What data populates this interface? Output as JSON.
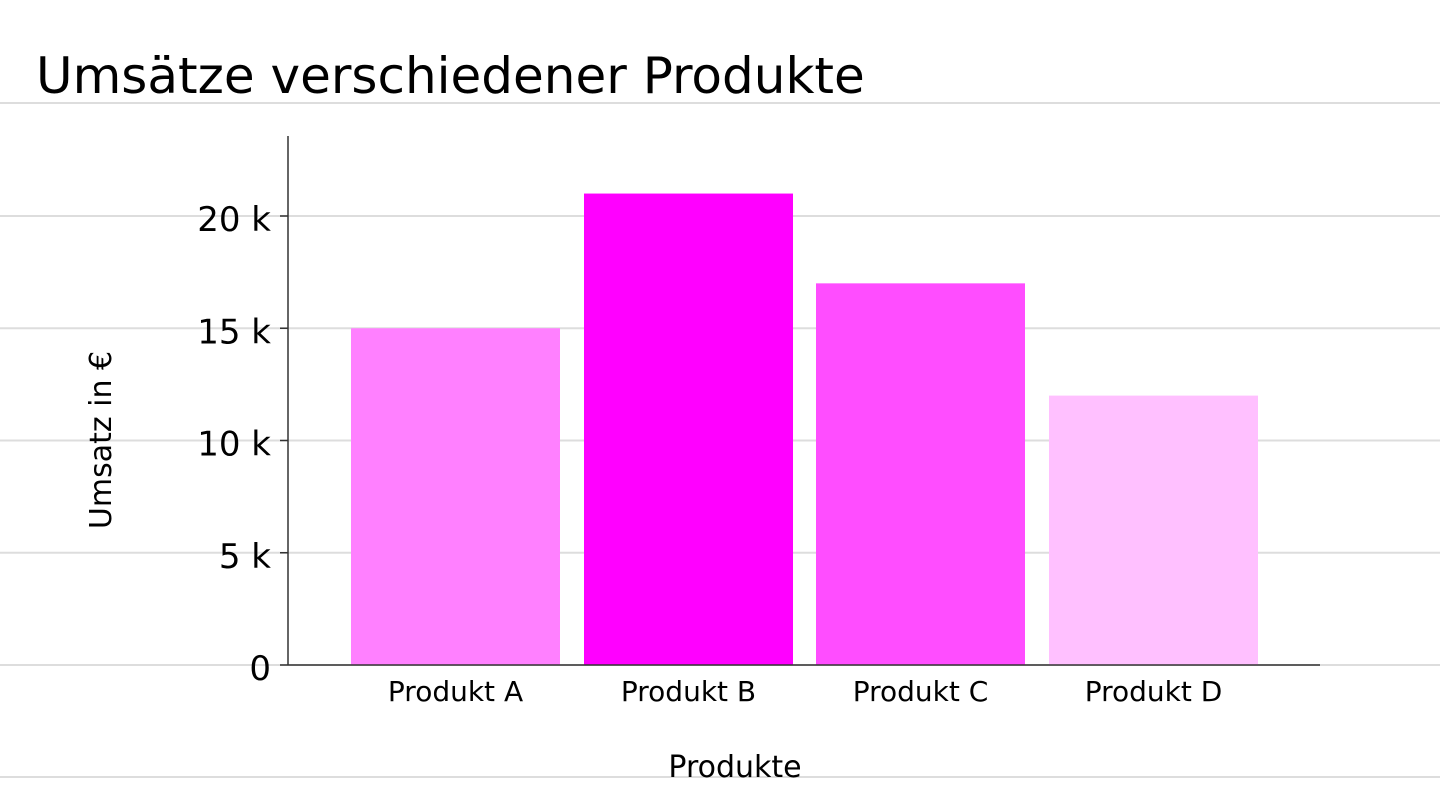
{
  "chart_data": {
    "type": "bar",
    "title": "Umsätze verschiedener Produkte",
    "xlabel": "Produkte",
    "ylabel": "Umsatz in €",
    "categories": [
      "Produkt A",
      "Produkt B",
      "Produkt C",
      "Produkt D"
    ],
    "values": [
      15000,
      21000,
      17000,
      12000
    ],
    "colors": [
      "#ff80ff",
      "#ff00ff",
      "#ff4dff",
      "#ffc0ff"
    ],
    "ylim": [
      0,
      23500
    ],
    "yticks": [
      0,
      5000,
      10000,
      15000,
      20000
    ],
    "ytick_labels": [
      "0",
      "5 k",
      "10 k",
      "15 k",
      "20 k"
    ],
    "grid": true,
    "legend": "none"
  }
}
